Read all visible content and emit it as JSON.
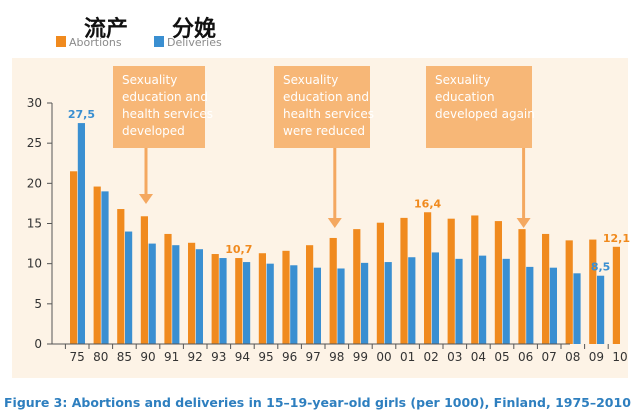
{
  "colors": {
    "abortions": "#f08a1e",
    "deliveries": "#3a8fd1",
    "plot_background": "#fdf3e6",
    "annotation_box": "#f7b777",
    "annotation_arrow": "#f4a860",
    "caption": "#2e7fbf"
  },
  "legend": {
    "abortions_zh": "流产",
    "abortions_en": "Abortions",
    "deliveries_zh": "分娩",
    "deliveries_en": "Deliveries"
  },
  "annotations": [
    {
      "lines": [
        "Sexuality",
        "education and",
        "health services",
        "developed"
      ],
      "target": "90"
    },
    {
      "lines": [
        "Sexuality",
        "education and",
        "health services",
        "were reduced"
      ],
      "target": "98"
    },
    {
      "lines": [
        "Sexuality",
        "education",
        "developed again"
      ],
      "target": "06"
    }
  ],
  "caption": "Figure 3: Abortions and deliveries in 15–19-year-old girls (per 1000), Finland, 1975–2010",
  "chart_data": {
    "type": "bar",
    "categories": [
      "75",
      "80",
      "85",
      "90",
      "91",
      "92",
      "93",
      "94",
      "95",
      "96",
      "97",
      "98",
      "99",
      "00",
      "01",
      "02",
      "03",
      "04",
      "05",
      "06",
      "07",
      "08",
      "09",
      "10"
    ],
    "series": [
      {
        "name": "Abortions",
        "values": [
          21.5,
          19.6,
          16.8,
          15.9,
          13.7,
          12.6,
          11.2,
          10.7,
          11.3,
          11.6,
          12.3,
          13.2,
          14.3,
          15.1,
          15.7,
          16.4,
          15.6,
          16.0,
          15.3,
          14.3,
          13.7,
          12.9,
          13.0,
          12.1
        ]
      },
      {
        "name": "Deliveries",
        "values": [
          27.5,
          19.0,
          14.0,
          12.5,
          12.3,
          11.8,
          10.7,
          10.2,
          10.0,
          9.8,
          9.5,
          9.4,
          10.1,
          10.2,
          10.8,
          11.4,
          10.6,
          11.0,
          10.6,
          9.6,
          9.5,
          8.8,
          8.5,
          null
        ]
      }
    ],
    "data_labels": [
      {
        "series": "Deliveries",
        "category": "75",
        "text": "27,5"
      },
      {
        "series": "Abortions",
        "category": "94",
        "text": "10,7"
      },
      {
        "series": "Abortions",
        "category": "02",
        "text": "16,4"
      },
      {
        "series": "Deliveries",
        "category": "09",
        "text": "8,5"
      },
      {
        "series": "Abortions",
        "category": "10",
        "text": "12,1"
      }
    ],
    "y_ticks": [
      "0",
      "5",
      "10",
      "15",
      "20",
      "25",
      "30"
    ],
    "ylim": [
      0,
      30
    ],
    "grid": false,
    "legend_position": "top-left"
  }
}
